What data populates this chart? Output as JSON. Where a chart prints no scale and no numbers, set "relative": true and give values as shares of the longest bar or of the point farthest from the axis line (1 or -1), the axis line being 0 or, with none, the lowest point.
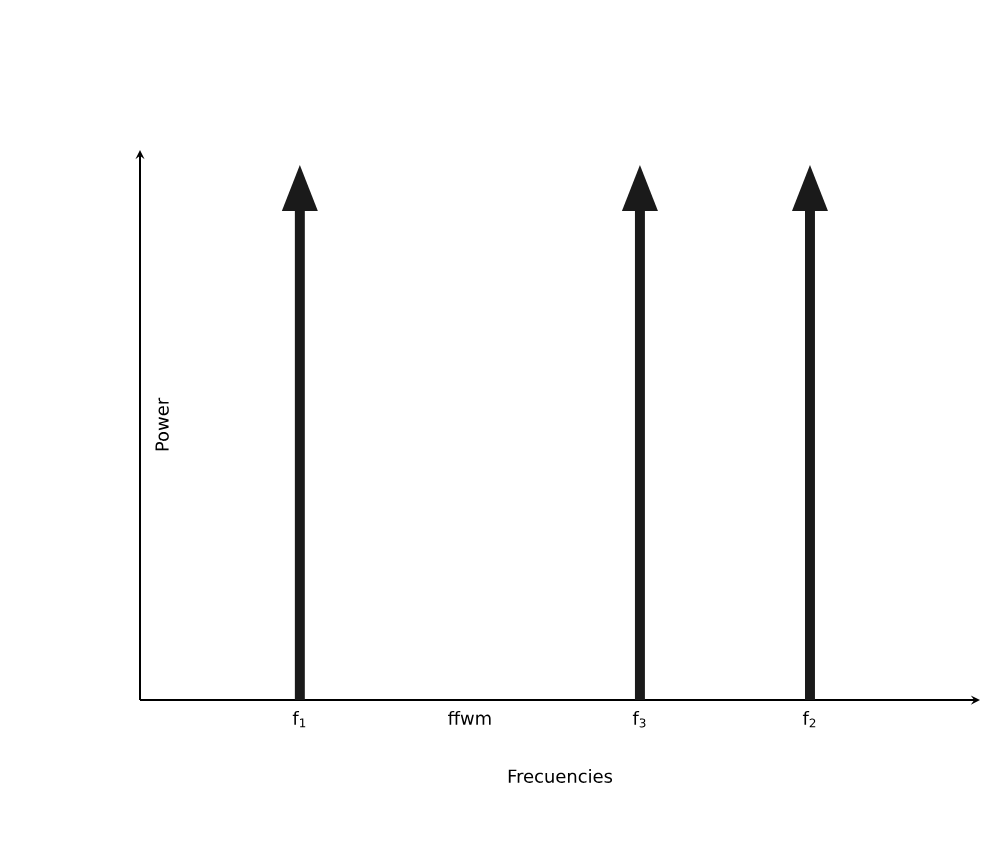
{
  "chart_data": {
    "type": "bar",
    "relative": true,
    "xlabel": "Frecuencies",
    "ylabel": "Power",
    "categories": [
      "f$_{1}$",
      "ffwm",
      "f$_{3}$",
      "f$_{2}$"
    ],
    "values": [
      1,
      null,
      1,
      1
    ],
    "color": "#1a1a1a"
  }
}
